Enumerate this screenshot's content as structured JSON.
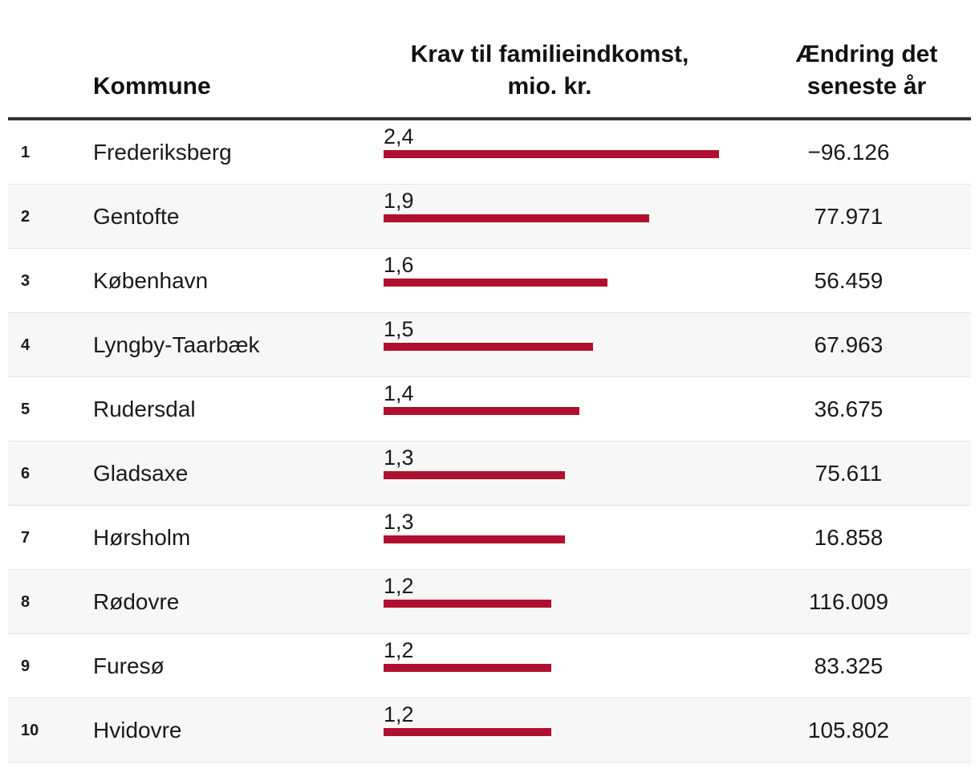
{
  "header": {
    "kommune": "Kommune",
    "krav_line1": "Krav til familieindkomst,",
    "krav_line2": "mio. kr.",
    "aendring_line1": "Ændring det",
    "aendring_line2": "seneste år"
  },
  "colors": {
    "bar": "#b0102f"
  },
  "chart_data": {
    "type": "table",
    "title": "",
    "columns": [
      "",
      "Kommune",
      "Krav til familieindkomst, mio. kr.",
      "Ændring det seneste år"
    ],
    "xlim": [
      0,
      2.4
    ],
    "rows": [
      {
        "rank": "1",
        "kommune": "Frederiksberg",
        "value": 2.4,
        "value_label": "2,4",
        "change": "−96.126"
      },
      {
        "rank": "2",
        "kommune": "Gentofte",
        "value": 1.9,
        "value_label": "1,9",
        "change": "77.971"
      },
      {
        "rank": "3",
        "kommune": "København",
        "value": 1.6,
        "value_label": "1,6",
        "change": "56.459"
      },
      {
        "rank": "4",
        "kommune": "Lyngby-Taarbæk",
        "value": 1.5,
        "value_label": "1,5",
        "change": "67.963"
      },
      {
        "rank": "5",
        "kommune": "Rudersdal",
        "value": 1.4,
        "value_label": "1,4",
        "change": "36.675"
      },
      {
        "rank": "6",
        "kommune": "Gladsaxe",
        "value": 1.3,
        "value_label": "1,3",
        "change": "75.611"
      },
      {
        "rank": "7",
        "kommune": "Hørsholm",
        "value": 1.3,
        "value_label": "1,3",
        "change": "16.858"
      },
      {
        "rank": "8",
        "kommune": "Rødovre",
        "value": 1.2,
        "value_label": "1,2",
        "change": "116.009"
      },
      {
        "rank": "9",
        "kommune": "Furesø",
        "value": 1.2,
        "value_label": "1,2",
        "change": "83.325"
      },
      {
        "rank": "10",
        "kommune": "Hvidovre",
        "value": 1.2,
        "value_label": "1,2",
        "change": "105.802"
      }
    ]
  }
}
